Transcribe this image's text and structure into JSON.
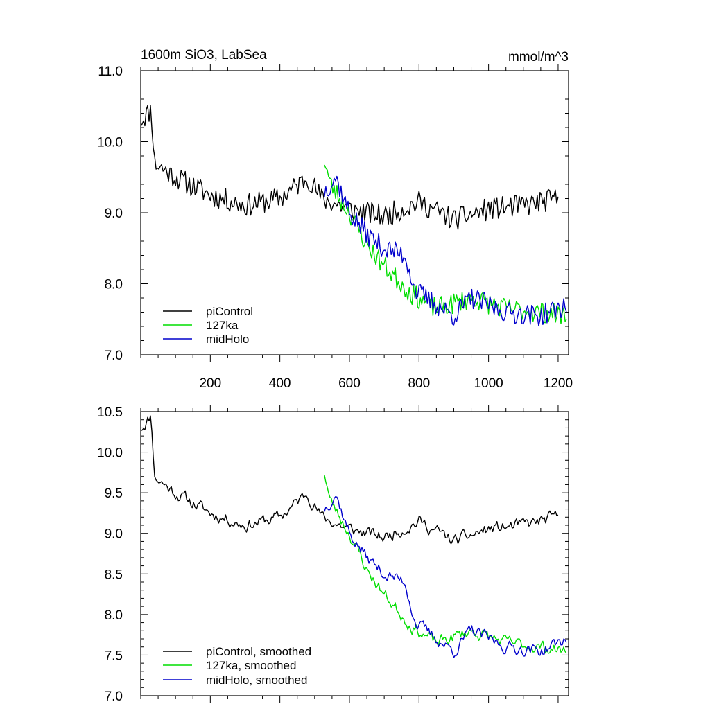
{
  "chart_data": [
    {
      "type": "line",
      "title_left": "1600m SiO3, LabSea",
      "title_right": "mmol/m^3",
      "xlim": [
        0,
        1230
      ],
      "ylim": [
        7.0,
        11.0
      ],
      "xticks": [
        200,
        400,
        600,
        800,
        1000,
        1200
      ],
      "xtick_labels": [
        "200",
        "400",
        "600",
        "800",
        "1000",
        "1200"
      ],
      "yticks": [
        7.0,
        8.0,
        9.0,
        10.0,
        11.0
      ],
      "ytick_labels": [
        "7.0",
        "8.0",
        "9.0",
        "10.0",
        "11.0"
      ],
      "legend_position": "bottom-left",
      "series": [
        {
          "name": "piControl",
          "color": "#000000",
          "kind": "pi",
          "noise": 0.16,
          "seed": 11
        },
        {
          "name": "127ka",
          "color": "#00dd00",
          "kind": "lig",
          "noise": 0.15,
          "seed": 23
        },
        {
          "name": "midHolo",
          "color": "#0000cc",
          "kind": "mh",
          "noise": 0.15,
          "seed": 37
        }
      ]
    },
    {
      "type": "line",
      "xlim": [
        0,
        1230
      ],
      "ylim": [
        7.0,
        10.5
      ],
      "xticks": [
        200,
        400,
        600,
        800,
        1000,
        1200
      ],
      "yticks": [
        7.0,
        7.5,
        8.0,
        8.5,
        9.0,
        9.5,
        10.0,
        10.5
      ],
      "ytick_labels": [
        "7.0",
        "7.5",
        "8.0",
        "8.5",
        "9.0",
        "9.5",
        "10.0",
        "10.5"
      ],
      "legend_position": "bottom-left",
      "series": [
        {
          "name": "piControl, smoothed",
          "color": "#000000",
          "kind": "pi",
          "noise": 0.09,
          "seed": 11
        },
        {
          "name": "127ka, smoothed",
          "color": "#00dd00",
          "kind": "lig",
          "noise": 0.09,
          "seed": 23
        },
        {
          "name": "midHolo, smoothed",
          "color": "#0000cc",
          "kind": "mh",
          "noise": 0.09,
          "seed": 37
        }
      ]
    }
  ],
  "series_shapes": {
    "pi": {
      "start": 0,
      "end": 1200,
      "step": 4,
      "trend": [
        [
          0,
          10.3
        ],
        [
          30,
          10.45
        ],
        [
          40,
          9.7
        ],
        [
          100,
          9.5
        ],
        [
          200,
          9.25
        ],
        [
          300,
          9.1
        ],
        [
          400,
          9.2
        ],
        [
          480,
          9.5
        ],
        [
          520,
          9.2
        ],
        [
          600,
          9.05
        ],
        [
          700,
          8.95
        ],
        [
          800,
          9.15
        ],
        [
          900,
          8.9
        ],
        [
          1000,
          9.05
        ],
        [
          1100,
          9.1
        ],
        [
          1200,
          9.2
        ]
      ]
    },
    "lig": {
      "start": 528,
      "end": 1225,
      "step": 4,
      "trend": [
        [
          528,
          9.75
        ],
        [
          545,
          9.4
        ],
        [
          600,
          9.0
        ],
        [
          650,
          8.55
        ],
        [
          700,
          8.25
        ],
        [
          780,
          7.85
        ],
        [
          850,
          7.65
        ],
        [
          950,
          7.8
        ],
        [
          1050,
          7.65
        ],
        [
          1150,
          7.6
        ],
        [
          1225,
          7.55
        ]
      ]
    },
    "mh": {
      "start": 528,
      "end": 1225,
      "step": 4,
      "trend": [
        [
          528,
          9.3
        ],
        [
          560,
          9.5
        ],
        [
          600,
          9.0
        ],
        [
          650,
          8.7
        ],
        [
          700,
          8.5
        ],
        [
          760,
          8.4
        ],
        [
          790,
          7.9
        ],
        [
          850,
          7.7
        ],
        [
          900,
          7.55
        ],
        [
          950,
          7.8
        ],
        [
          1050,
          7.6
        ],
        [
          1150,
          7.55
        ],
        [
          1225,
          7.7
        ]
      ]
    }
  }
}
